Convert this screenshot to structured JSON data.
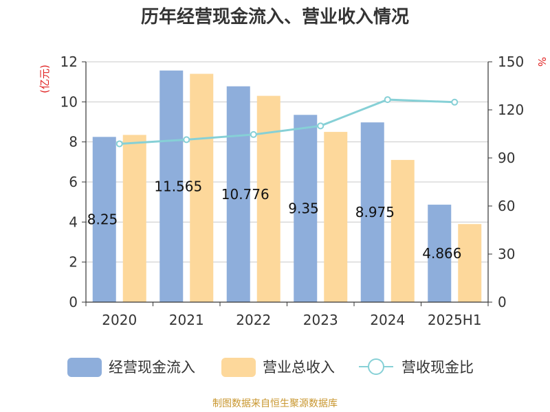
{
  "chart_data": {
    "type": "bar",
    "title": "历年经营现金流入、营业收入情况",
    "categories": [
      "2020",
      "2021",
      "2022",
      "2023",
      "2024",
      "2025H1"
    ],
    "series": [
      {
        "name": "经营现金流入",
        "type": "bar",
        "axis": "left",
        "color": "#8eaedb",
        "values": [
          8.25,
          11.565,
          10.776,
          9.35,
          8.975,
          4.866
        ],
        "labels": [
          "8.25",
          "11.565",
          "10.776",
          "9.35",
          "8.975",
          "4.866"
        ]
      },
      {
        "name": "营业总收入",
        "type": "bar",
        "axis": "left",
        "color": "#fdd89b",
        "values": [
          8.35,
          11.4,
          10.3,
          8.5,
          7.1,
          3.9
        ]
      },
      {
        "name": "营收现金比",
        "type": "line",
        "axis": "right",
        "color": "#86d0d6",
        "values": [
          98.8,
          101.4,
          104.6,
          110.0,
          126.4,
          124.8
        ]
      }
    ],
    "y_left": {
      "unit": "(亿元)",
      "ylim": [
        0,
        12
      ],
      "ticks": [
        "0",
        "2",
        "4",
        "6",
        "8",
        "10",
        "12"
      ]
    },
    "y_right": {
      "unit": "%",
      "ylim": [
        0,
        150
      ],
      "ticks": [
        "0",
        "30",
        "60",
        "90",
        "120",
        "150"
      ]
    },
    "grid": true,
    "legend_position": "bottom"
  },
  "source": "制图数据来自恒生聚源数据库"
}
